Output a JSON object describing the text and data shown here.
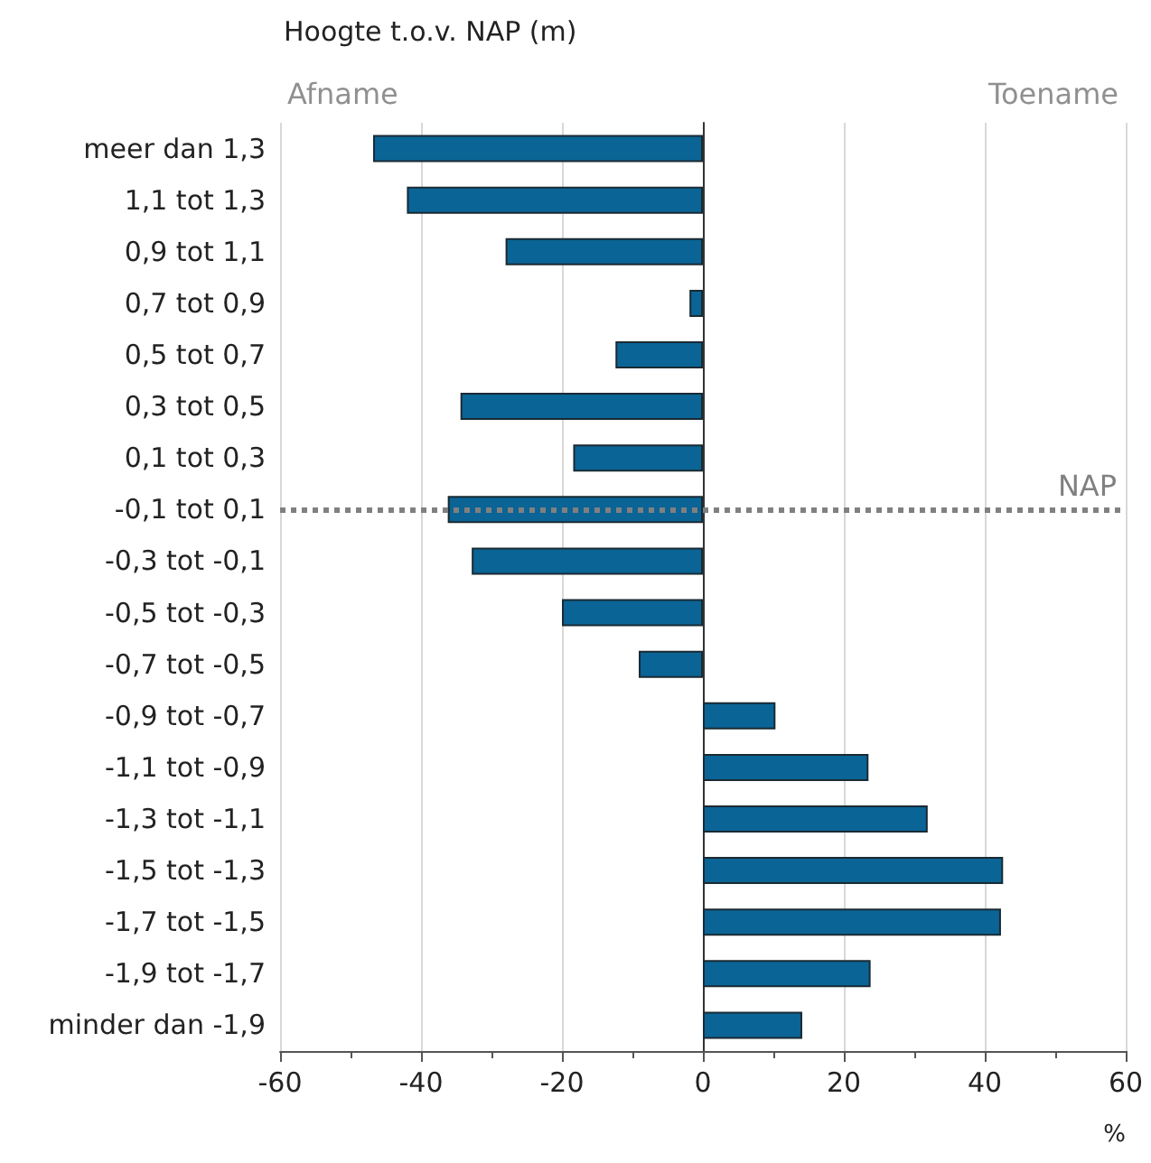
{
  "chart_data": {
    "type": "bar",
    "orientation": "horizontal",
    "title": "Hoogte t.o.v. NAP (m)",
    "xlabel": "%",
    "categories": [
      "meer dan 1,3",
      "1,1 tot 1,3",
      "0,9 tot 1,1",
      "0,7 tot 0,9",
      "0,5 tot 0,7",
      "0,3 tot 0,5",
      "0,1 tot 0,3",
      "-0,1 tot 0,1",
      "-0,3 tot -0,1",
      "-0,5 tot -0,3",
      "-0,7 tot -0,5",
      "-0,9 tot -0,7",
      "-1,1 tot -0,9",
      "-1,3 tot -1,1",
      "-1,5 tot -1,3",
      "-1,7 tot -1,5",
      "-1,9 tot -1,7",
      "minder dan -1,9"
    ],
    "values": [
      -46.8,
      -42,
      -28,
      -1.9,
      -12.4,
      -34.4,
      -18.4,
      -36.2,
      -32.8,
      -20,
      -9.1,
      10.3,
      23.5,
      31.9,
      42.6,
      42.3,
      23.8,
      14.1
    ],
    "color": "#0a6496",
    "xlim": [
      -60,
      60
    ],
    "xticks": [
      -60,
      -40,
      -20,
      0,
      20,
      40,
      60
    ],
    "grid": "x",
    "ref_lines": [
      {
        "axis": "y",
        "value": "-0,1 tot 0,1",
        "label": "NAP",
        "color": "#808080",
        "line_style": "dotted"
      }
    ],
    "annotations": [
      "Afname",
      "Toename"
    ]
  }
}
